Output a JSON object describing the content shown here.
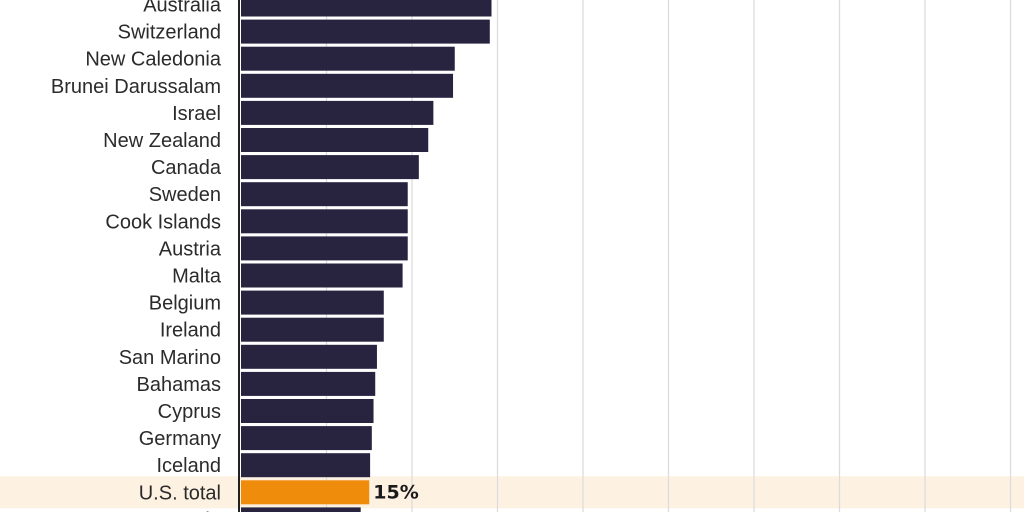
{
  "chart_data": {
    "type": "bar",
    "orientation": "horizontal",
    "categories": [
      "Australia",
      "Switzerland",
      "New Caledonia",
      "Brunei Darussalam",
      "Israel",
      "New Zealand",
      "Canada",
      "Sweden",
      "Cook Islands",
      "Austria",
      "Malta",
      "Belgium",
      "Ireland",
      "San Marino",
      "Bahamas",
      "Cyprus",
      "Germany",
      "Iceland",
      "U.S. total",
      "Estonia"
    ],
    "values": [
      29.3,
      29.1,
      25.0,
      24.8,
      22.5,
      21.9,
      20.8,
      19.5,
      19.5,
      19.5,
      18.9,
      16.7,
      16.7,
      15.9,
      15.7,
      15.5,
      15.3,
      15.1,
      15.0,
      14.0
    ],
    "value_labels": [
      "",
      "",
      "",
      "",
      "",
      "",
      "",
      "",
      "",
      "",
      "",
      "",
      "",
      "",
      "",
      "",
      "",
      "",
      "15%",
      ""
    ],
    "highlight_category": "U.S. total",
    "xlim": [
      0,
      90
    ],
    "grid_step": 10,
    "grid": true,
    "colors": {
      "bar": "#28233f",
      "highlight_bar": "#ef8c0c",
      "highlight_band": "#fdf1e2",
      "gridline": "#dcdcdc",
      "axis": "#222222"
    }
  }
}
